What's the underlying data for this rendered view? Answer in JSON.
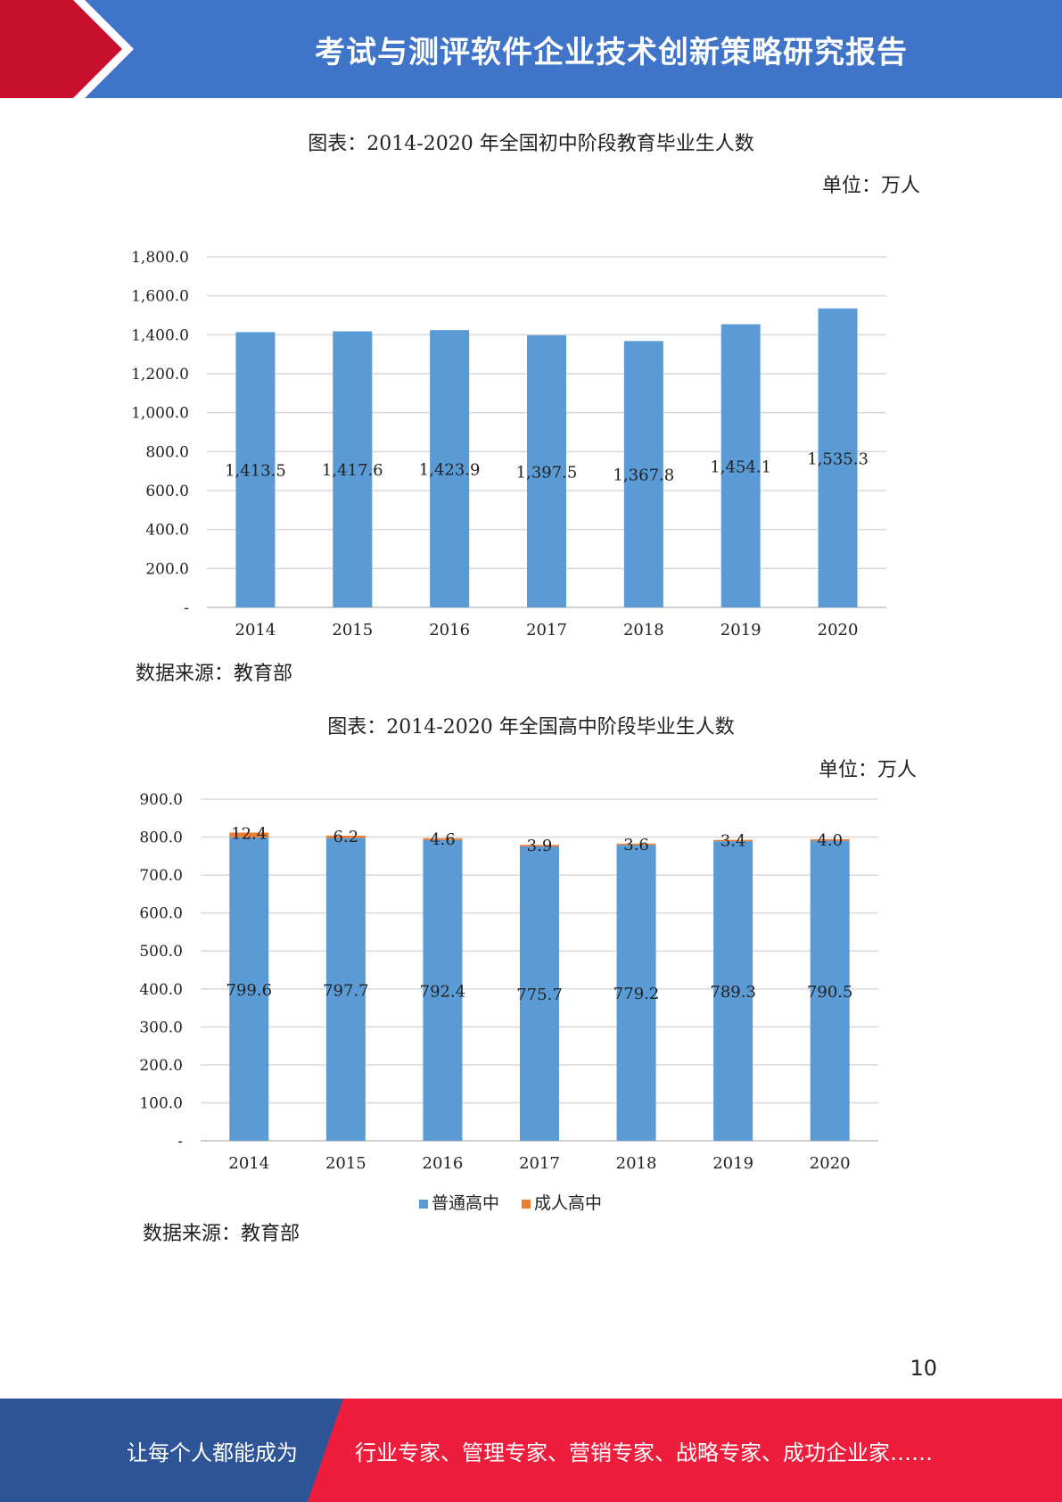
{
  "header": {
    "title": "考试与测评软件企业技术创新策略研究报告"
  },
  "colors": {
    "header_blue": "#3f74c8",
    "accent_red": "#c8102e",
    "bar_blue": "#5b9bd5",
    "bar_orange": "#ed7d31",
    "footer_blue": "#2d5597",
    "footer_red": "#ee1d3c"
  },
  "chart1": {
    "caption": "图表：2014-2020 年全国初中阶段教育毕业生人数",
    "unit": "单位：万人",
    "source": "数据来源：教育部"
  },
  "chart2": {
    "caption": "图表：2014-2020 年全国高中阶段毕业生人数",
    "unit": "单位：万人",
    "source": "数据来源：教育部"
  },
  "chart_data": [
    {
      "type": "bar",
      "categories": [
        "2014",
        "2015",
        "2016",
        "2017",
        "2018",
        "2019",
        "2020"
      ],
      "values": [
        1413.5,
        1417.6,
        1423.9,
        1397.5,
        1367.8,
        1454.1,
        1535.3
      ],
      "data_labels": [
        "1,413.5",
        "1,417.6",
        "1,423.9",
        "1,397.5",
        "1,367.8",
        "1,454.1",
        "1,535.3"
      ],
      "ylim": [
        0,
        1800
      ],
      "yticks": [
        "-",
        "200.0",
        "400.0",
        "600.0",
        "800.0",
        "1,000.0",
        "1,200.0",
        "1,400.0",
        "1,600.0",
        "1,800.0"
      ],
      "grid": true,
      "legend": "none"
    },
    {
      "type": "bar",
      "stacked": true,
      "categories": [
        "2014",
        "2015",
        "2016",
        "2017",
        "2018",
        "2019",
        "2020"
      ],
      "series": [
        {
          "name": "普通高中",
          "color": "#5b9bd5",
          "values": [
            799.6,
            797.7,
            792.4,
            775.7,
            779.2,
            789.3,
            790.5
          ],
          "labels": [
            "799.6",
            "797.7",
            "792.4",
            "775.7",
            "779.2",
            "789.3",
            "790.5"
          ]
        },
        {
          "name": "成人高中",
          "color": "#ed7d31",
          "values": [
            12.4,
            6.2,
            4.6,
            3.9,
            3.6,
            3.4,
            4.0
          ],
          "labels": [
            "12.4",
            "6.2",
            "4.6",
            "3.9",
            "3.6",
            "3.4",
            "4.0"
          ]
        }
      ],
      "ylim": [
        0,
        900
      ],
      "yticks": [
        "-",
        "100.0",
        "200.0",
        "300.0",
        "400.0",
        "500.0",
        "600.0",
        "700.0",
        "800.0",
        "900.0"
      ],
      "grid": true,
      "legend": "bottom"
    }
  ],
  "page_number": "10",
  "footer": {
    "left": "让每个人都能成为",
    "right": "行业专家、管理专家、营销专家、战略专家、成功企业家……"
  }
}
